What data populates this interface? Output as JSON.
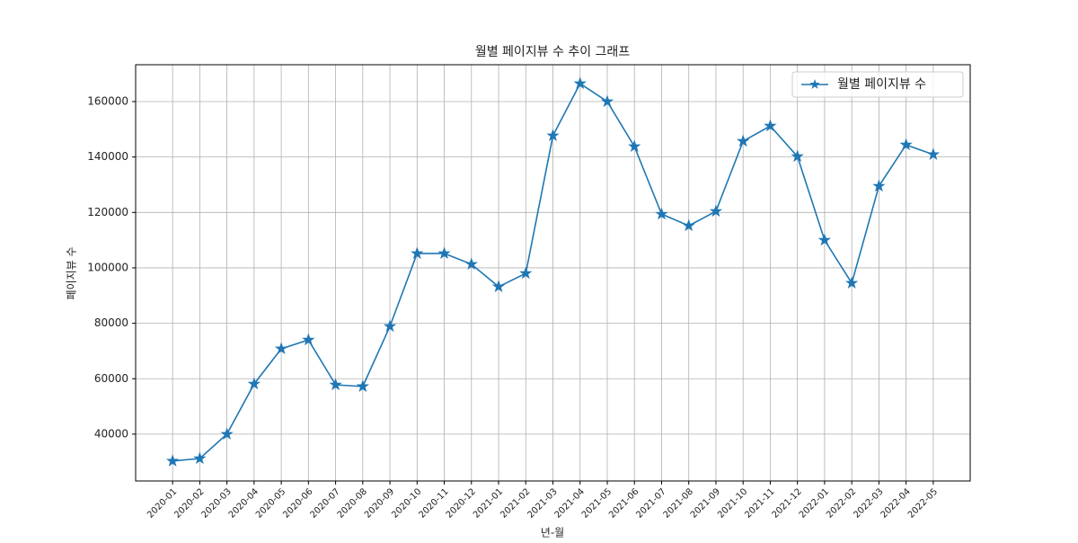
{
  "chart_data": {
    "type": "line",
    "title": "월별 페이지뷰 수 추이 그래프",
    "x_label": "년-월",
    "y_label": "페이지뷰 수",
    "categories": [
      "2020-01",
      "2020-02",
      "2020-03",
      "2020-04",
      "2020-05",
      "2020-06",
      "2020-07",
      "2020-08",
      "2020-09",
      "2020-10",
      "2020-11",
      "2020-12",
      "2021-01",
      "2021-02",
      "2021-03",
      "2021-04",
      "2021-05",
      "2021-06",
      "2021-07",
      "2021-08",
      "2021-09",
      "2021-10",
      "2021-11",
      "2021-12",
      "2022-01",
      "2022-02",
      "2022-03",
      "2022-04",
      "2022-05"
    ],
    "series": [
      {
        "name": "월별 페이지뷰 수",
        "color": "#1f77b4",
        "marker": "star",
        "values": [
          30300,
          31200,
          40000,
          58100,
          70800,
          74000,
          57800,
          57200,
          78900,
          105200,
          105200,
          101300,
          93200,
          98000,
          147700,
          166500,
          160000,
          143800,
          119400,
          115200,
          120400,
          145700,
          151200,
          140200,
          110000,
          94500,
          129500,
          144400,
          140900
        ]
      }
    ],
    "ylim": [
      23100,
      173300
    ],
    "yticks": [
      40000,
      60000,
      80000,
      100000,
      120000,
      140000,
      160000
    ],
    "grid": true,
    "legend": "upper right"
  }
}
